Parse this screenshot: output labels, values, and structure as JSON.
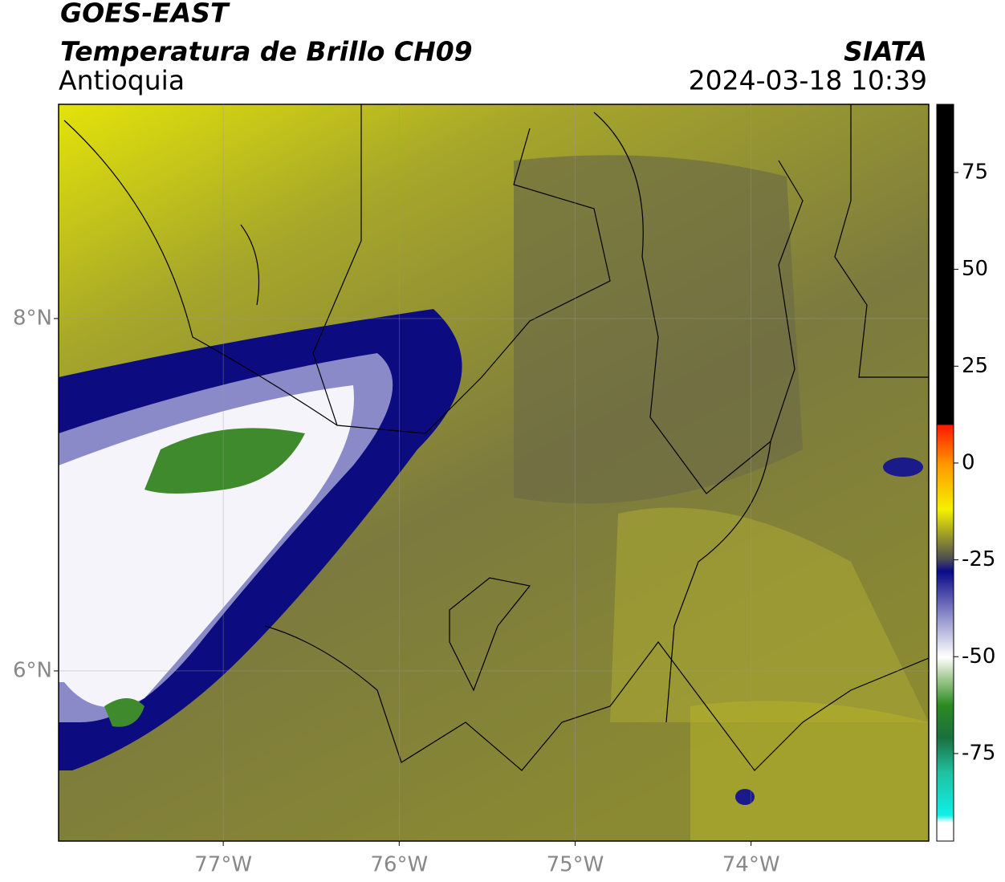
{
  "map": {
    "title": "GOES-EAST",
    "subtitle": "Temperatura de Brillo CH09",
    "region": "Antioquia",
    "source": "SIATA",
    "datetime": "2024-03-18 10:39",
    "xlim": [
      -77.936,
      -72.99
    ],
    "ylim": [
      5.034,
      9.216
    ],
    "xticks": [
      {
        "value": -77,
        "label": "77°W"
      },
      {
        "value": -76,
        "label": "76°W"
      },
      {
        "value": -75,
        "label": "75°W"
      },
      {
        "value": -74,
        "label": "74°W"
      }
    ],
    "yticks": [
      {
        "value": 8,
        "label": "8°N"
      },
      {
        "value": 6,
        "label": "6°N"
      }
    ],
    "grid": true,
    "colorbar": {
      "lim": [
        -97.6,
        92.6
      ],
      "ticks": [
        75,
        50,
        25,
        0,
        -25,
        -50,
        -75
      ]
    }
  }
}
